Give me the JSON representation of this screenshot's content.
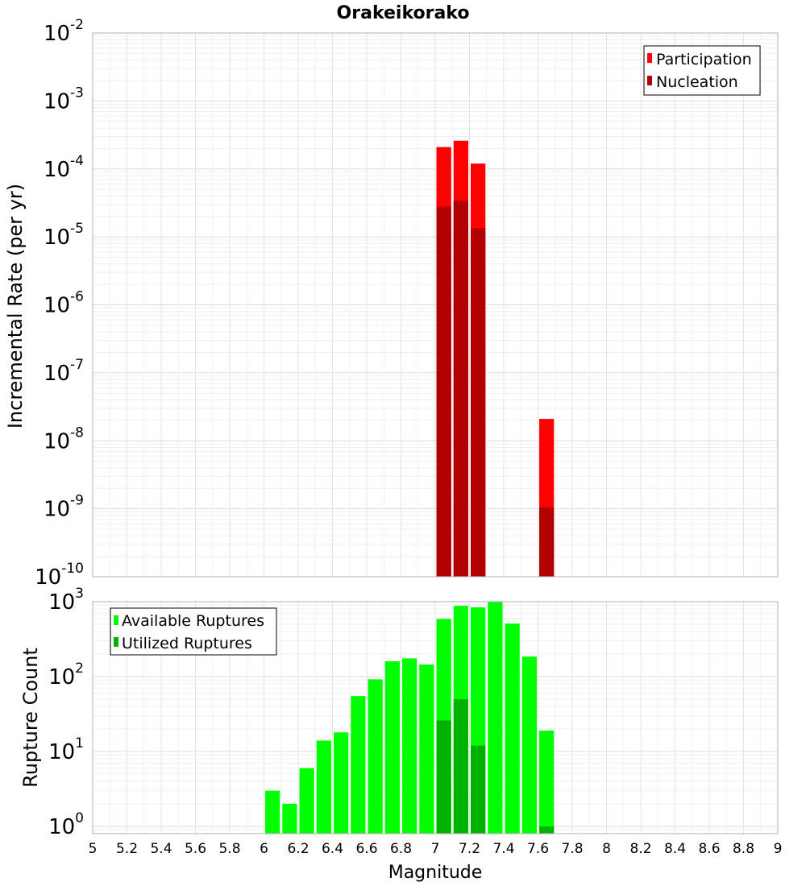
{
  "title": "Orakeikorako",
  "x_label": "Magnitude",
  "x_ticks": [
    "5",
    "5.2",
    "5.4",
    "5.6",
    "5.8",
    "6",
    "6.2",
    "6.4",
    "6.6",
    "6.8",
    "7",
    "7.2",
    "7.4",
    "7.6",
    "7.8",
    "8",
    "8.2",
    "8.4",
    "8.6",
    "8.8",
    "9"
  ],
  "colors": {
    "participation": "#ff0000",
    "nucleation": "#b20000",
    "available": "#00ff00",
    "utilized": "#00b200",
    "grid": "#e6e6e6",
    "frame": "#b0b0b0"
  },
  "chart_data": [
    {
      "type": "bar",
      "title": "Orakeikorako",
      "xlabel": "Magnitude",
      "ylabel": "Incremental Rate (per yr)",
      "xlim": [
        5,
        9
      ],
      "ylim": [
        1e-10,
        0.01
      ],
      "y_scale": "log",
      "y_ticks": [
        {
          "base": "10",
          "exp": "-10"
        },
        {
          "base": "10",
          "exp": "-9"
        },
        {
          "base": "10",
          "exp": "-8"
        },
        {
          "base": "10",
          "exp": "-7"
        },
        {
          "base": "10",
          "exp": "-6"
        },
        {
          "base": "10",
          "exp": "-5"
        },
        {
          "base": "10",
          "exp": "-4"
        },
        {
          "base": "10",
          "exp": "-3"
        },
        {
          "base": "10",
          "exp": "-2"
        }
      ],
      "grid": true,
      "legend_position": "top-right",
      "bar_width": 0.1,
      "series": [
        {
          "name": "Participation",
          "x": [
            7.05,
            7.15,
            7.25,
            7.65
          ],
          "values": [
            0.00021,
            0.00026,
            0.00012,
            2.1e-08
          ]
        },
        {
          "name": "Nucleation",
          "x": [
            7.05,
            7.15,
            7.25,
            7.65
          ],
          "values": [
            2.8e-05,
            3.4e-05,
            1.35e-05,
            1.05e-09
          ]
        }
      ]
    },
    {
      "type": "bar",
      "xlabel": "Magnitude",
      "ylabel": "Rupture Count",
      "xlim": [
        5,
        9
      ],
      "ylim": [
        0.8,
        1000
      ],
      "y_scale": "log",
      "y_ticks": [
        {
          "base": "10",
          "exp": "0"
        },
        {
          "base": "10",
          "exp": "1"
        },
        {
          "base": "10",
          "exp": "2"
        },
        {
          "base": "10",
          "exp": "3"
        }
      ],
      "grid": true,
      "legend_position": "top-left",
      "bar_width": 0.1,
      "series": [
        {
          "name": "Available Ruptures",
          "x": [
            6.05,
            6.15,
            6.25,
            6.35,
            6.45,
            6.55,
            6.65,
            6.75,
            6.85,
            6.95,
            7.05,
            7.15,
            7.25,
            7.35,
            7.45,
            7.55,
            7.65
          ],
          "values": [
            3,
            2,
            6,
            14,
            18,
            55,
            92,
            160,
            175,
            145,
            590,
            880,
            840,
            1000,
            510,
            185,
            19
          ]
        },
        {
          "name": "Utilized Ruptures",
          "x": [
            7.05,
            7.15,
            7.25,
            7.65
          ],
          "values": [
            26,
            50,
            12,
            1
          ]
        }
      ]
    }
  ]
}
